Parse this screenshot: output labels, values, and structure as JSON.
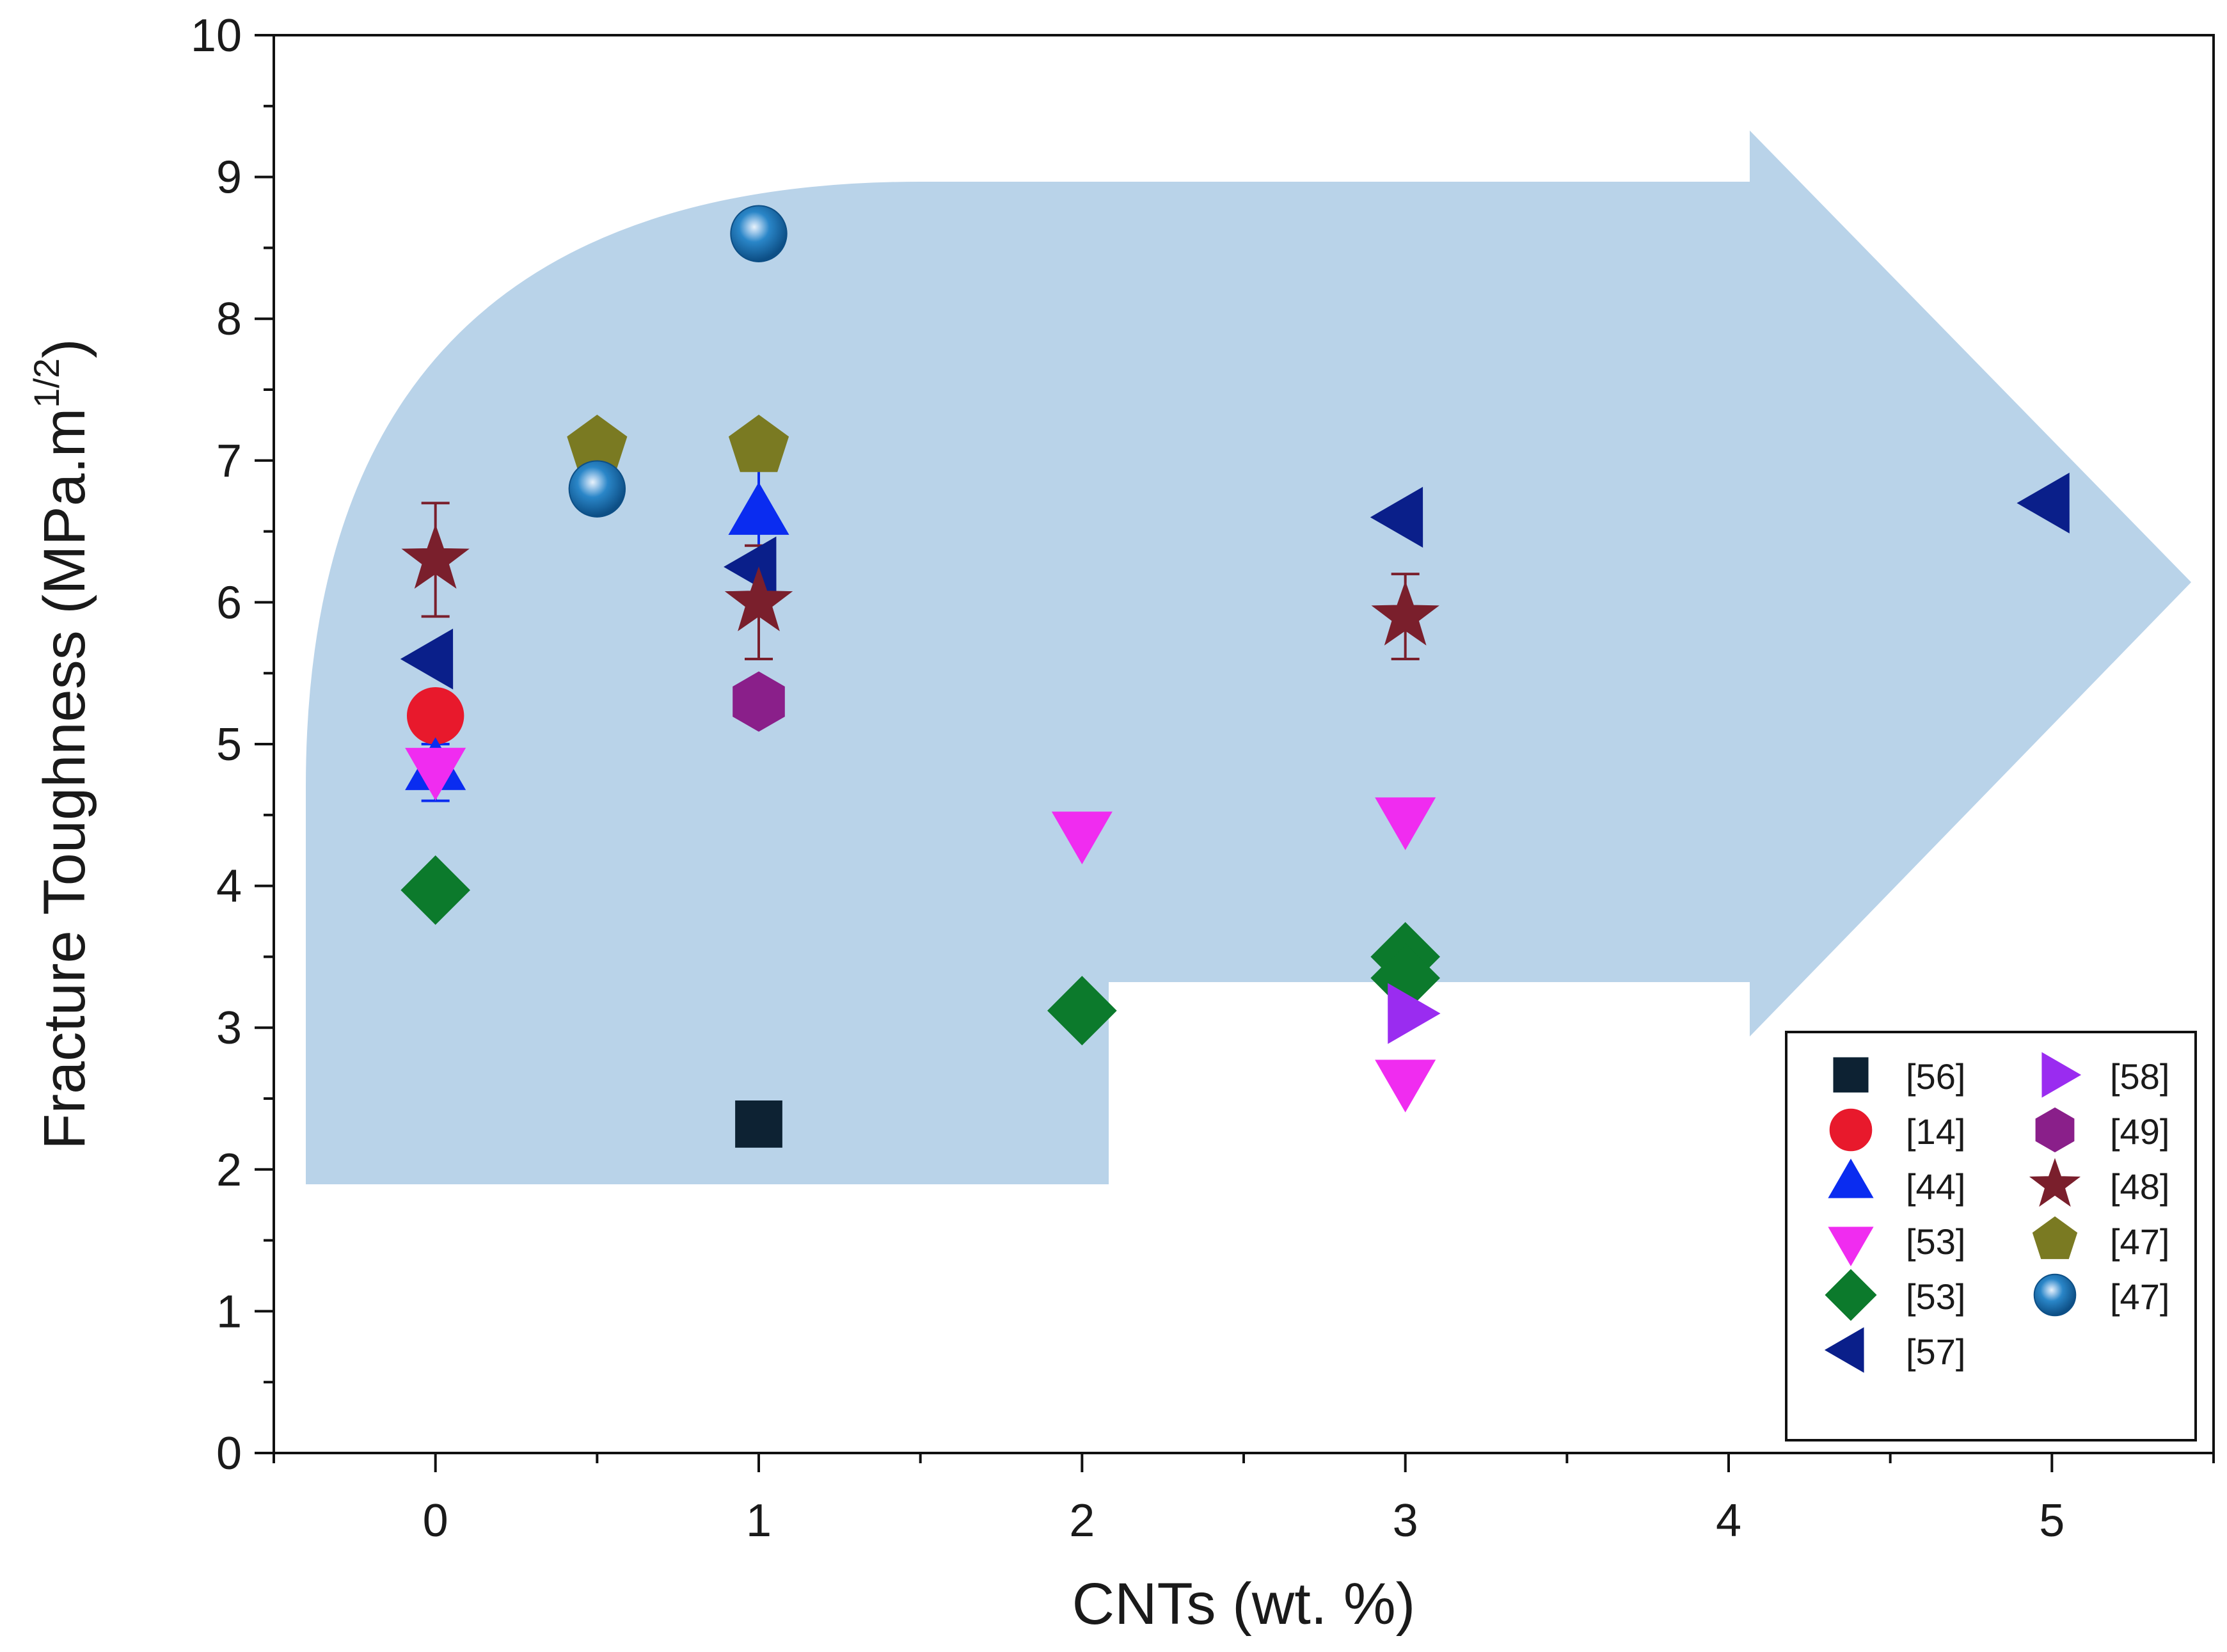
{
  "chart_data": {
    "type": "scatter",
    "title": "",
    "xlabel": "CNTs (wt. %)",
    "ylabel": "Fracture Toughness (MPa.m",
    "ylabel_sup": "1/2",
    "ylabel_close": ")",
    "xlim": [
      -0.5,
      5.5
    ],
    "ylim": [
      0,
      10
    ],
    "x_ticks": [
      0,
      1,
      2,
      3,
      4,
      5
    ],
    "x_tick_labels": [
      "0",
      "1",
      "2",
      "3",
      "4",
      "5"
    ],
    "y_ticks": [
      0,
      1,
      2,
      3,
      4,
      5,
      6,
      7,
      8,
      9,
      10
    ],
    "y_tick_labels": [
      "0",
      "1",
      "2",
      "3",
      "4",
      "5",
      "6",
      "7",
      "8",
      "9",
      "10"
    ],
    "legend_position": "bottom-right",
    "annotation": "arrow-shaped shaded band indicating toughness increase with CNT content",
    "series": [
      {
        "name": "[56]",
        "marker": "square",
        "color": "#0d2233",
        "points": [
          [
            1,
            2.32
          ]
        ]
      },
      {
        "name": "[14]",
        "marker": "circle",
        "color": "#e8192c",
        "points": [
          [
            0,
            5.2
          ]
        ]
      },
      {
        "name": "[44]",
        "marker": "triangle-up",
        "color": "#0a2cf0",
        "points": [
          [
            0,
            4.8
          ],
          [
            1,
            6.6
          ]
        ],
        "errors": [
          0.2,
          0.6
        ]
      },
      {
        "name": "[53]",
        "marker": "triangle-down",
        "color": "#f02cf0",
        "points": [
          [
            0,
            4.85
          ],
          [
            2,
            4.4
          ],
          [
            3,
            4.5
          ],
          [
            3,
            2.65
          ]
        ]
      },
      {
        "name": "[53]",
        "marker": "diamond",
        "color": "#0c7a2c",
        "points": [
          [
            0,
            3.97
          ],
          [
            2,
            3.12
          ],
          [
            3,
            3.5
          ],
          [
            3,
            3.35
          ]
        ]
      },
      {
        "name": "[57]",
        "marker": "triangle-left",
        "color": "#0a1f8a",
        "points": [
          [
            0,
            5.6
          ],
          [
            1,
            6.25
          ],
          [
            3,
            6.6
          ],
          [
            5,
            6.7
          ]
        ]
      },
      {
        "name": "[58]",
        "marker": "triangle-right",
        "color": "#9a2cf0",
        "points": [
          [
            3,
            3.1
          ]
        ]
      },
      {
        "name": "[49]",
        "marker": "hexagon",
        "color": "#8a1f8a",
        "points": [
          [
            1,
            5.3
          ]
        ]
      },
      {
        "name": "[48]",
        "marker": "star",
        "color": "#7a1f2c",
        "points": [
          [
            0,
            6.3
          ],
          [
            1,
            6.0
          ],
          [
            3,
            5.9
          ]
        ],
        "errors": [
          0.4,
          0.4,
          0.3
        ]
      },
      {
        "name": "[47]",
        "marker": "pentagon",
        "color": "#7a7a22",
        "points": [
          [
            0.5,
            7.1
          ],
          [
            1,
            7.1
          ]
        ]
      },
      {
        "name": "[47]",
        "marker": "sphere",
        "color": "#1b6fae",
        "points": [
          [
            0.5,
            6.8
          ],
          [
            1,
            8.6
          ]
        ]
      }
    ]
  }
}
